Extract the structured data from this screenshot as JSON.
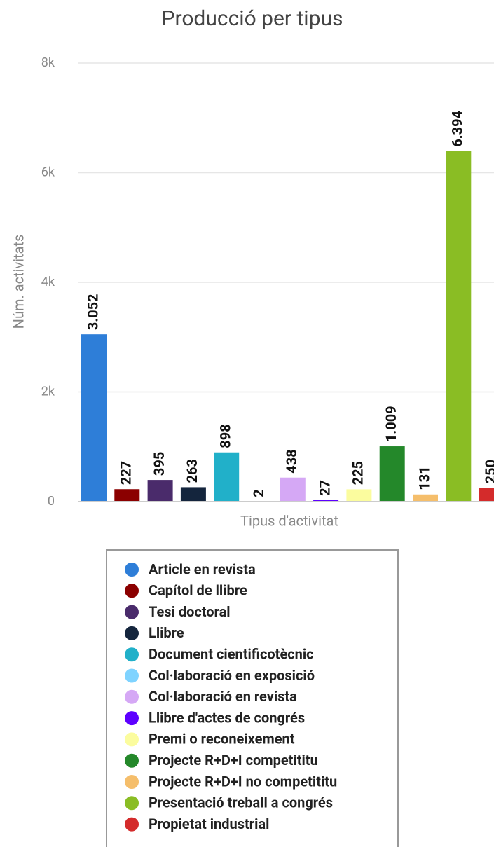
{
  "chart_data": {
    "type": "bar",
    "title": "Producció per tipus",
    "ylabel": "Núm. activitats",
    "xlabel": "Tipus d'activitat",
    "categories": [
      "Article en revista",
      "Capítol de llibre",
      "Tesi doctoral",
      "Llibre",
      "Document cientificotècnic",
      "Col·laboració en exposició",
      "Col·laboració en revista",
      "Llibre d'actes de congrés",
      "Premi o reconeixement",
      "Projecte R+D+I competititu",
      "Projecte R+D+I no competititu",
      "Presentació treball a congrés",
      "Propietat industrial"
    ],
    "values": [
      3052,
      227,
      395,
      263,
      898,
      2,
      438,
      27,
      225,
      1009,
      131,
      6394,
      250
    ],
    "value_labels": [
      "3.052",
      "227",
      "395",
      "263",
      "898",
      "2",
      "438",
      "27",
      "225",
      "1.009",
      "131",
      "6.394",
      "250"
    ],
    "colors": [
      "#2e7ed8",
      "#8b0000",
      "#4a2b6b",
      "#14253d",
      "#21b0c9",
      "#7fd3ff",
      "#d5a8f5",
      "#5d00ff",
      "#fbfc9e",
      "#24882a",
      "#f5be6b",
      "#8abd24",
      "#d42b2b"
    ],
    "ylim": [
      0,
      8000
    ],
    "yticks": [
      0,
      {
        "value": 2000,
        "label": "2k"
      },
      {
        "value": 4000,
        "label": "4k"
      },
      {
        "value": 6000,
        "label": "6k"
      },
      {
        "value": 8000,
        "label": "8k"
      }
    ],
    "grid": true,
    "legend": "bottom"
  }
}
